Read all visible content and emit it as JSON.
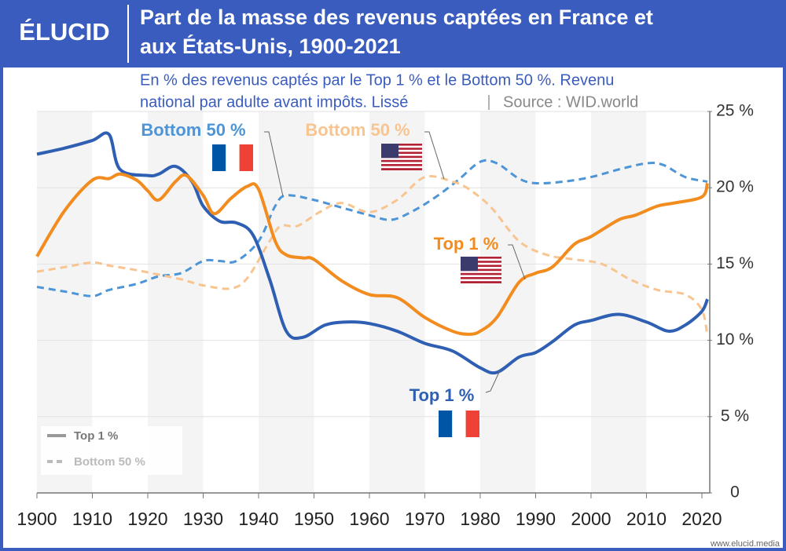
{
  "logo": "ÉLUCID",
  "title_lines": [
    "Part de la masse des revenus captées en France et",
    "aux États-Unis, 1900-2021"
  ],
  "subtitle_lines": [
    "En % des revenus captés par le Top 1 % et le Bottom 50 %. Revenu",
    "national par adulte avant impôts. Lissé"
  ],
  "source": "Source : WID.world",
  "footer": "www.elucid.media",
  "chart_data": {
    "type": "line",
    "xlim": [
      1900,
      2021
    ],
    "xticks": [
      1900,
      1910,
      1920,
      1930,
      1940,
      1950,
      1960,
      1970,
      1980,
      1990,
      2000,
      2010,
      2020
    ],
    "ylim": [
      0,
      25
    ],
    "yticks": [
      {
        "value": 0,
        "label": "0"
      },
      {
        "value": 5,
        "label": "5 %"
      },
      {
        "value": 10,
        "label": "10 %"
      },
      {
        "value": 15,
        "label": "15 %"
      },
      {
        "value": 20,
        "label": "20 %"
      },
      {
        "value": 25,
        "label": "25 %"
      }
    ],
    "grid": true,
    "legend": [
      "Top 1 %",
      "Bottom 50 %"
    ],
    "series": [
      {
        "name": "Top 1 %",
        "color": "#2f5fb3",
        "dashed": false,
        "x": [
          1900,
          1905,
          1910,
          1913,
          1915,
          1920,
          1922,
          1925,
          1928,
          1930,
          1933,
          1936,
          1939,
          1942,
          1945,
          1948,
          1952,
          1956,
          1960,
          1965,
          1970,
          1975,
          1980,
          1983,
          1987,
          1990,
          1993,
          1997,
          2000,
          2005,
          2010,
          2014,
          2017,
          2020,
          2021
        ],
        "values": [
          22.2,
          22.6,
          23.1,
          23.5,
          21.2,
          20.8,
          20.9,
          21.4,
          20.4,
          18.8,
          17.8,
          17.7,
          16.9,
          14.0,
          10.6,
          10.2,
          11.0,
          11.2,
          11.1,
          10.6,
          9.8,
          9.3,
          8.2,
          7.9,
          8.9,
          9.2,
          9.9,
          11.0,
          11.3,
          11.7,
          11.2,
          10.6,
          11.0,
          11.9,
          12.7
        ]
      },
      {
        "name": "Top 1 %",
        "color": "#f28c1e",
        "dashed": false,
        "x": [
          1900,
          1905,
          1910,
          1913,
          1915,
          1918,
          1920,
          1922,
          1925,
          1927,
          1930,
          1932,
          1935,
          1938,
          1940,
          1943,
          1945,
          1948,
          1950,
          1955,
          1960,
          1965,
          1970,
          1975,
          1978,
          1980,
          1983,
          1987,
          1990,
          1993,
          1997,
          2000,
          2005,
          2008,
          2012,
          2015,
          2020,
          2021
        ],
        "values": [
          15.5,
          18.5,
          20.5,
          20.6,
          20.9,
          20.5,
          19.8,
          19.2,
          20.4,
          20.8,
          19.5,
          18.3,
          19.3,
          20.1,
          19.9,
          16.5,
          15.6,
          15.4,
          15.3,
          13.9,
          13.0,
          12.8,
          11.5,
          10.6,
          10.4,
          10.6,
          11.5,
          13.8,
          14.4,
          14.8,
          16.3,
          16.8,
          17.9,
          18.2,
          18.8,
          19.0,
          19.4,
          20.3
        ]
      },
      {
        "name": "Bottom 50 %",
        "color": "#4d95d6",
        "dashed": true,
        "x": [
          1900,
          1905,
          1910,
          1913,
          1918,
          1922,
          1926,
          1930,
          1933,
          1936,
          1940,
          1943,
          1945,
          1950,
          1955,
          1960,
          1964,
          1968,
          1972,
          1976,
          1980,
          1983,
          1987,
          1990,
          1995,
          2000,
          2005,
          2010,
          2013,
          2017,
          2021
        ],
        "values": [
          13.5,
          13.2,
          12.9,
          13.3,
          13.7,
          14.2,
          14.4,
          15.2,
          15.2,
          15.2,
          16.5,
          18.8,
          19.5,
          19.2,
          18.7,
          18.2,
          17.9,
          18.5,
          19.4,
          20.5,
          21.7,
          21.6,
          20.6,
          20.3,
          20.4,
          20.7,
          21.2,
          21.6,
          21.5,
          20.7,
          20.4
        ]
      },
      {
        "name": "Bottom 50 %",
        "color": "#f8c48f",
        "dashed": true,
        "x": [
          1900,
          1905,
          1910,
          1913,
          1918,
          1922,
          1926,
          1930,
          1935,
          1938,
          1942,
          1944,
          1947,
          1951,
          1955,
          1960,
          1965,
          1970,
          1975,
          1978,
          1982,
          1987,
          1992,
          1997,
          2002,
          2007,
          2012,
          2017,
          2020,
          2021
        ],
        "values": [
          14.5,
          14.8,
          15.1,
          14.9,
          14.6,
          14.3,
          14.0,
          13.6,
          13.4,
          14.1,
          16.5,
          17.5,
          17.5,
          18.4,
          19.0,
          18.4,
          19.2,
          20.7,
          20.4,
          19.9,
          18.7,
          16.5,
          15.6,
          15.3,
          15.0,
          14.0,
          13.3,
          13.0,
          12.0,
          10.3
        ]
      }
    ]
  }
}
